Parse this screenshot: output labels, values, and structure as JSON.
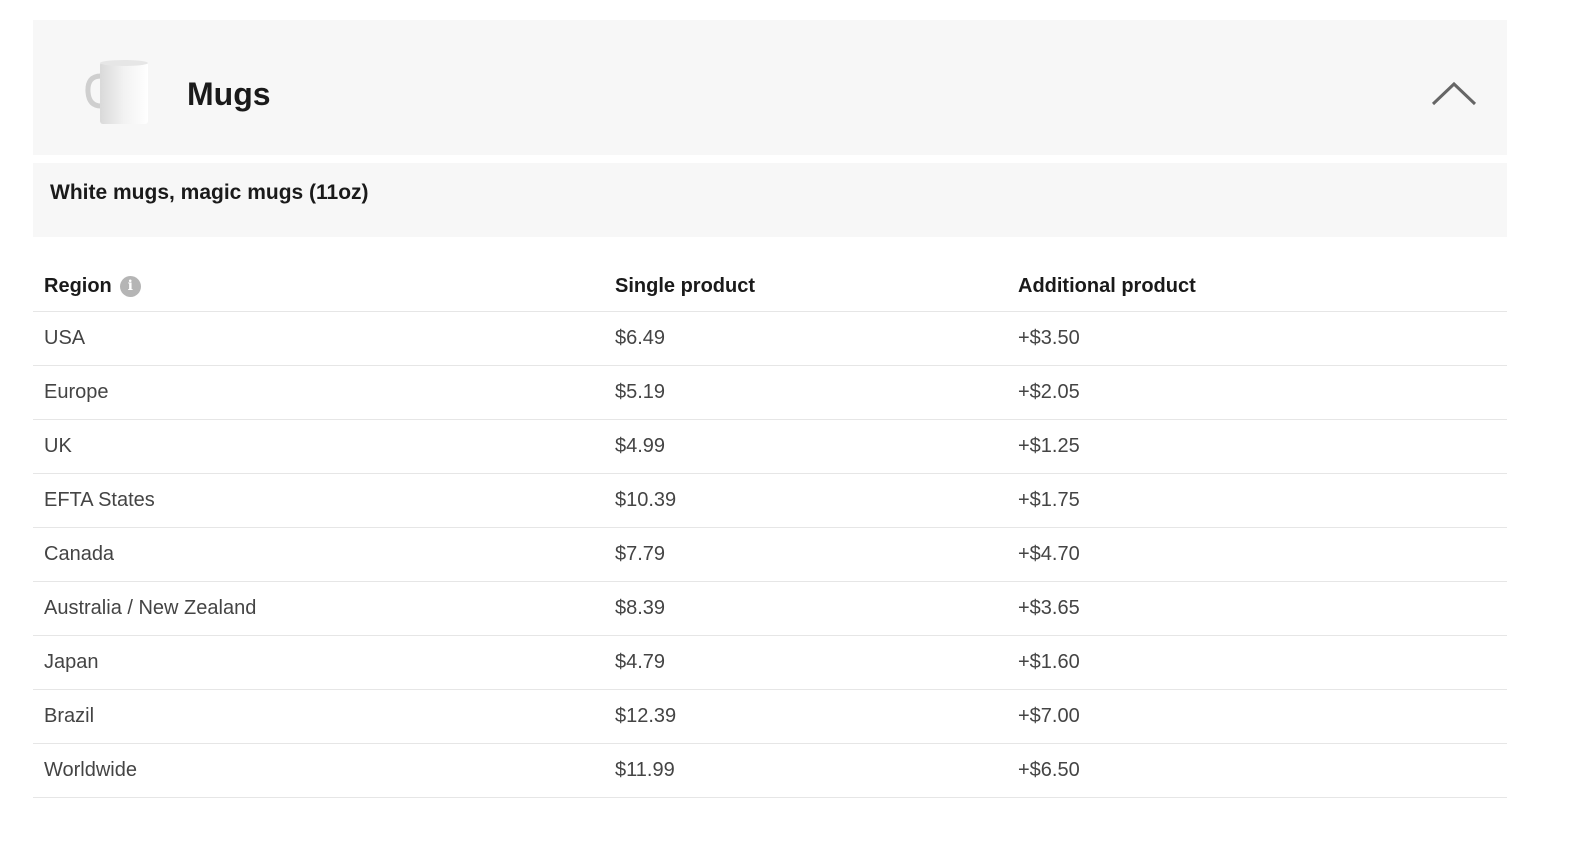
{
  "section": {
    "title": "Mugs",
    "icon": "mug-image",
    "toggle_icon": "chevron-up-icon"
  },
  "subheader": "White mugs, magic mugs (11oz)",
  "table": {
    "headers": [
      "Region",
      "Single product",
      "Additional product"
    ],
    "rows": [
      [
        "USA",
        "$6.49",
        "+$3.50"
      ],
      [
        "Europe",
        "$5.19",
        "+$2.05"
      ],
      [
        "UK",
        "$4.99",
        "+$1.25"
      ],
      [
        "EFTA States",
        "$10.39",
        "+$1.75"
      ],
      [
        "Canada",
        "$7.79",
        "+$4.70"
      ],
      [
        "Australia / New Zealand",
        "$8.39",
        "+$3.65"
      ],
      [
        "Japan",
        "$4.79",
        "+$1.60"
      ],
      [
        "Brazil",
        "$12.39",
        "+$7.00"
      ],
      [
        "Worldwide",
        "$11.99",
        "+$6.50"
      ]
    ]
  }
}
